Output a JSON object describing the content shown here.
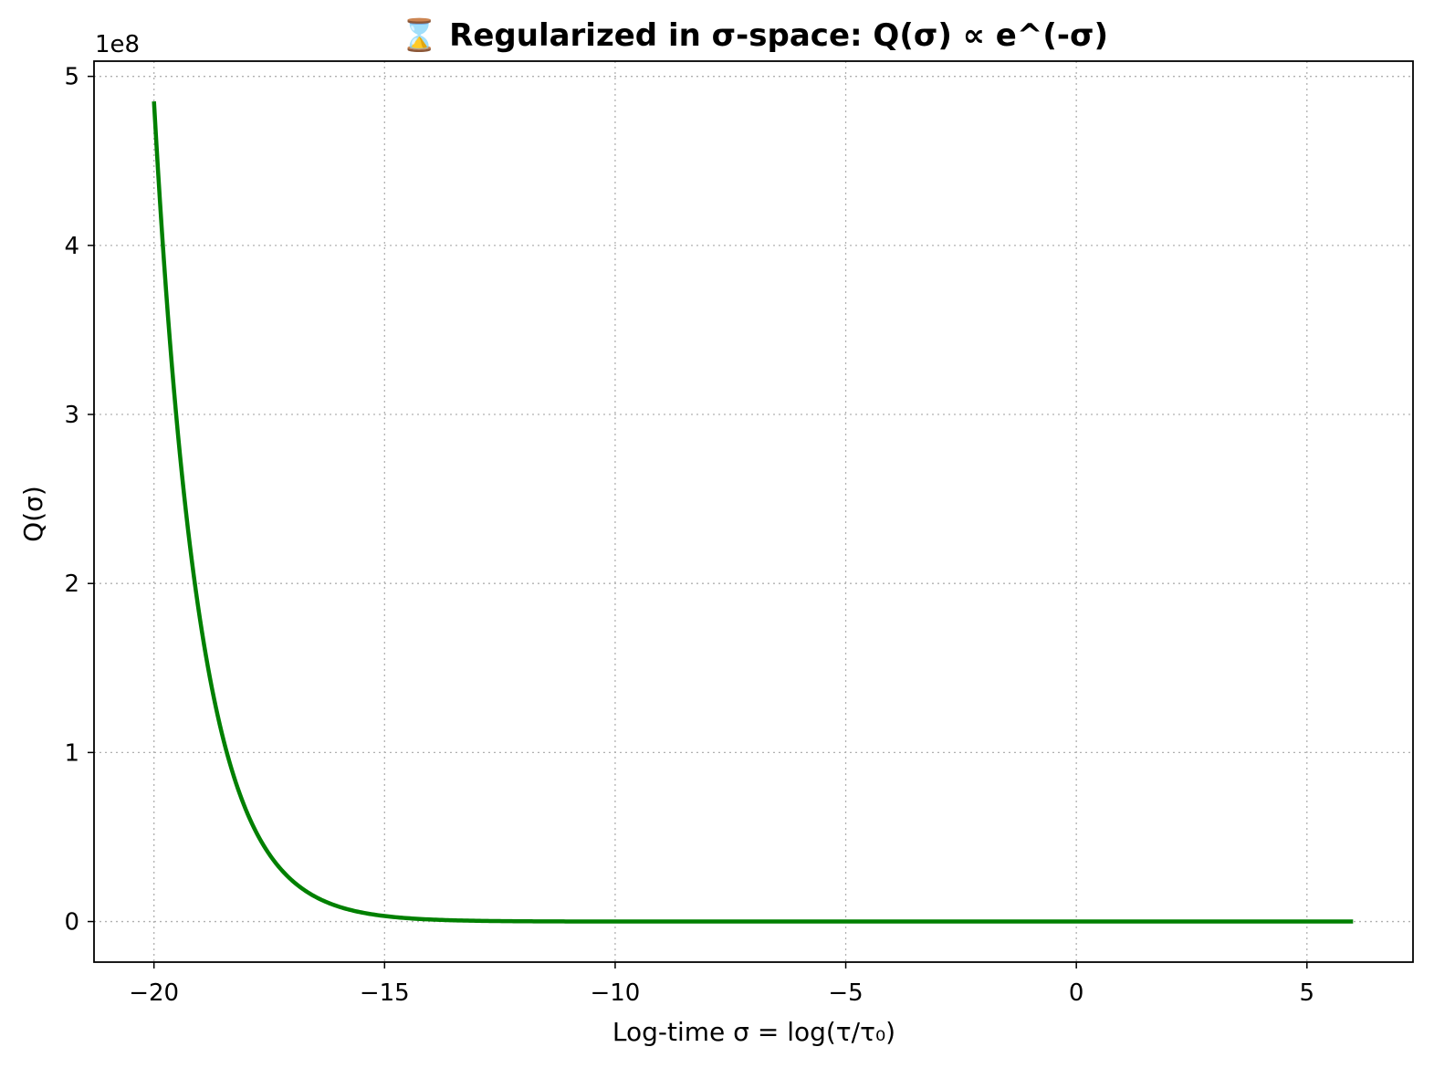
{
  "chart_data": {
    "type": "line",
    "title": "⌛ Regularized in σ-space: Q(σ) ∝ e^(-σ)",
    "xlabel": "Log-time σ = log(τ/τ₀)",
    "ylabel": "Q(σ)",
    "y_offset_label": "1e8",
    "xlim": [
      -21.3,
      7.3
    ],
    "ylim": [
      -0.24,
      5.09
    ],
    "x_ticks": [
      {
        "value": -20,
        "label": "−20"
      },
      {
        "value": -15,
        "label": "−15"
      },
      {
        "value": -10,
        "label": "−10"
      },
      {
        "value": -5,
        "label": "−5"
      },
      {
        "value": 0,
        "label": "0"
      },
      {
        "value": 5,
        "label": "5"
      }
    ],
    "y_ticks": [
      {
        "value": 0,
        "label": "0"
      },
      {
        "value": 1,
        "label": "1"
      },
      {
        "value": 2,
        "label": "2"
      },
      {
        "value": 3,
        "label": "3"
      },
      {
        "value": 4,
        "label": "4"
      },
      {
        "value": 5,
        "label": "5"
      }
    ],
    "grid": true,
    "series": [
      {
        "color": "#008000",
        "function": "exp(-x)",
        "y_scale": 1e-08,
        "x_range": [
          -20,
          6
        ]
      }
    ]
  }
}
